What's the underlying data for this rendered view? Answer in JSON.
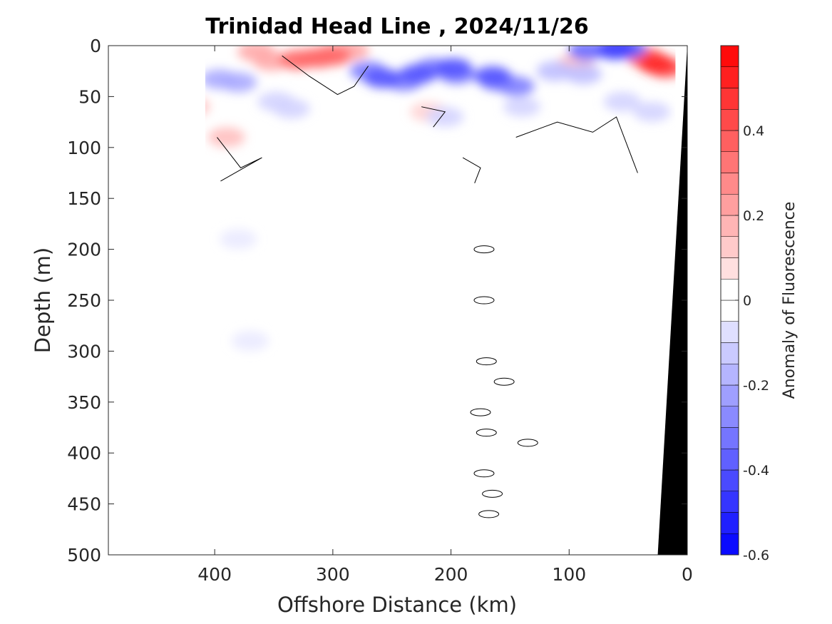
{
  "chart_data": {
    "type": "heatmap",
    "title": "Trinidad Head Line , 2024/11/26",
    "xlabel": "Offshore Distance (km)",
    "ylabel": "Depth (m)",
    "xlim": [
      490,
      0
    ],
    "ylim": [
      0,
      500
    ],
    "x_reversed": true,
    "y_reversed": true,
    "x_ticks": [
      400,
      300,
      200,
      100,
      0
    ],
    "y_ticks": [
      0,
      50,
      100,
      150,
      200,
      250,
      300,
      350,
      400,
      450,
      500
    ],
    "colorbar": {
      "label": "Anomaly of Fluorescence",
      "limits": [
        -0.6,
        0.6
      ],
      "ticks": [
        -0.6,
        -0.4,
        -0.2,
        0,
        0.2,
        0.4
      ],
      "levels": [
        -0.6,
        -0.55,
        -0.5,
        -0.45,
        -0.4,
        -0.35,
        -0.3,
        -0.25,
        -0.2,
        -0.15,
        -0.1,
        -0.05,
        0,
        0.05,
        0.1,
        0.15,
        0.2,
        0.25,
        0.3,
        0.35,
        0.4,
        0.45,
        0.5,
        0.55,
        0.6
      ]
    },
    "data_extent": {
      "x": [
        408,
        10
      ],
      "y": [
        0,
        500
      ]
    },
    "patches": [
      {
        "x": [
          365,
          352,
          318,
          300,
          285
        ],
        "y": [
          6,
          15,
          12,
          8,
          5
        ],
        "value": 0.2
      },
      {
        "x": [
          330,
          312,
          300
        ],
        "y": [
          14,
          12,
          10
        ],
        "value": 0.35
      },
      {
        "x": [
          420,
          390
        ],
        "y": [
          60,
          90
        ],
        "value": 0.15
      },
      {
        "x": [
          35,
          18
        ],
        "y": [
          12,
          22
        ],
        "value": 0.4
      },
      {
        "x": [
          26
        ],
        "y": [
          18
        ],
        "value": 0.5
      },
      {
        "x": [
          95
        ],
        "y": [
          18
        ],
        "value": 0.15
      },
      {
        "x": [
          219
        ],
        "y": [
          65
        ],
        "value": 0.1
      },
      {
        "x": [
          396,
          380
        ],
        "y": [
          33,
          36
        ],
        "value": -0.2
      },
      {
        "x": [
          270,
          240,
          215,
          195,
          160,
          145
        ],
        "y": [
          25,
          35,
          22,
          28,
          35,
          40
        ],
        "value": -0.3
      },
      {
        "x": [
          258,
          228,
          198,
          165
        ],
        "y": [
          32,
          28,
          22,
          30
        ],
        "value": -0.4
      },
      {
        "x": [
          85,
          62,
          50
        ],
        "y": [
          5,
          4,
          3
        ],
        "value": -0.35
      },
      {
        "x": [
          60
        ],
        "y": [
          3
        ],
        "value": -0.45
      },
      {
        "x": [
          112,
          88
        ],
        "y": [
          25,
          28
        ],
        "value": -0.15
      },
      {
        "x": [
          348,
          335
        ],
        "y": [
          55,
          62
        ],
        "value": -0.1
      },
      {
        "x": [
          205,
          140,
          55,
          30
        ],
        "y": [
          70,
          60,
          55,
          65
        ],
        "value": -0.1
      },
      {
        "x": [
          380
        ],
        "y": [
          190
        ],
        "value": -0.05
      },
      {
        "x": [
          370
        ],
        "y": [
          290
        ],
        "value": -0.05
      }
    ],
    "zero_contours": [
      {
        "x": [
          343,
          320,
          296,
          282,
          270
        ],
        "y": [
          10,
          30,
          48,
          40,
          20
        ]
      },
      {
        "x": [
          398,
          378,
          360,
          395
        ],
        "y": [
          90,
          120,
          110,
          133
        ]
      },
      {
        "x": [
          225,
          205,
          215
        ],
        "y": [
          60,
          65,
          80
        ]
      },
      {
        "x": [
          190,
          175,
          180
        ],
        "y": [
          110,
          120,
          135
        ]
      },
      {
        "x": [
          145,
          110,
          80,
          60,
          42
        ],
        "y": [
          90,
          75,
          85,
          70,
          125
        ]
      },
      {
        "x": [
          172
        ],
        "y": [
          200
        ]
      },
      {
        "x": [
          172
        ],
        "y": [
          250
        ]
      },
      {
        "x": [
          170
        ],
        "y": [
          310
        ]
      },
      {
        "x": [
          155
        ],
        "y": [
          330
        ]
      },
      {
        "x": [
          175
        ],
        "y": [
          360
        ]
      },
      {
        "x": [
          170
        ],
        "y": [
          380
        ]
      },
      {
        "x": [
          135
        ],
        "y": [
          390
        ]
      },
      {
        "x": [
          172
        ],
        "y": [
          420
        ]
      },
      {
        "x": [
          165
        ],
        "y": [
          440
        ]
      },
      {
        "x": [
          168
        ],
        "y": [
          460
        ]
      }
    ],
    "seafloor": {
      "x": [
        25,
        0
      ],
      "y": [
        500,
        0
      ],
      "fill": "#000000"
    }
  }
}
